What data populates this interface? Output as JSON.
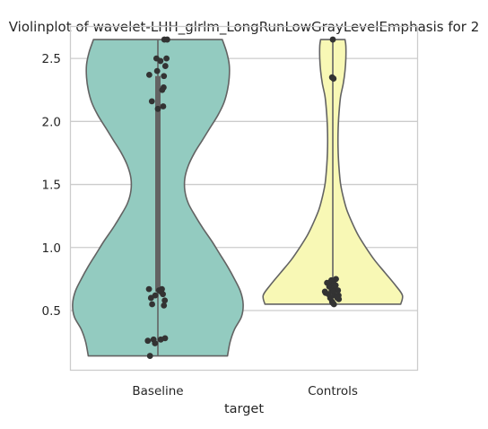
{
  "chart_data": {
    "type": "violin",
    "title": "Violinplot of wavelet-LHH_glrlm_LongRunLowGrayLevelEmphasis for 2",
    "xlabel": "target",
    "ylabel": "",
    "categories": [
      "Baseline",
      "Controls"
    ],
    "yticks": [
      "0.5",
      "1.0",
      "1.5",
      "2.0",
      "2.5"
    ],
    "ylim": [
      0.03,
      2.75
    ],
    "grid": true,
    "colors": {
      "Baseline": "#93cbc0",
      "Controls": "#f8f8b5",
      "outline": "#636363",
      "points": "#333333",
      "grid": "#cccccc"
    },
    "series": [
      {
        "category": "Baseline",
        "min": 0.14,
        "max": 2.65,
        "q1": 0.65,
        "q3": 2.36,
        "profile": [
          [
            0.14,
            0.8
          ],
          [
            0.25,
            0.83
          ],
          [
            0.35,
            0.88
          ],
          [
            0.45,
            0.96
          ],
          [
            0.55,
            0.98
          ],
          [
            0.65,
            0.95
          ],
          [
            0.75,
            0.88
          ],
          [
            0.85,
            0.8
          ],
          [
            0.95,
            0.71
          ],
          [
            1.05,
            0.62
          ],
          [
            1.15,
            0.52
          ],
          [
            1.25,
            0.43
          ],
          [
            1.35,
            0.35
          ],
          [
            1.45,
            0.31
          ],
          [
            1.55,
            0.31
          ],
          [
            1.65,
            0.35
          ],
          [
            1.75,
            0.42
          ],
          [
            1.85,
            0.51
          ],
          [
            1.95,
            0.6
          ],
          [
            2.05,
            0.69
          ],
          [
            2.15,
            0.76
          ],
          [
            2.25,
            0.8
          ],
          [
            2.35,
            0.82
          ],
          [
            2.45,
            0.82
          ],
          [
            2.55,
            0.79
          ],
          [
            2.65,
            0.74
          ]
        ],
        "points": [
          [
            0.45,
            2.65
          ],
          [
            0.65,
            2.65
          ],
          [
            -0.1,
            2.5
          ],
          [
            0.6,
            2.5
          ],
          [
            0.18,
            2.48
          ],
          [
            0.52,
            2.44
          ],
          [
            -0.05,
            2.4
          ],
          [
            -0.6,
            2.37
          ],
          [
            0.42,
            2.36
          ],
          [
            0.4,
            2.27
          ],
          [
            0.3,
            2.25
          ],
          [
            -0.42,
            2.16
          ],
          [
            0.37,
            2.12
          ],
          [
            0.0,
            2.1
          ],
          [
            -0.62,
            0.67
          ],
          [
            0.28,
            0.67
          ],
          [
            0.08,
            0.66
          ],
          [
            0.22,
            0.65
          ],
          [
            0.35,
            0.63
          ],
          [
            -0.18,
            0.62
          ],
          [
            -0.48,
            0.6
          ],
          [
            0.48,
            0.58
          ],
          [
            -0.4,
            0.55
          ],
          [
            0.42,
            0.54
          ],
          [
            -0.7,
            0.26
          ],
          [
            -0.3,
            0.27
          ],
          [
            -0.2,
            0.24
          ],
          [
            0.5,
            0.28
          ],
          [
            0.2,
            0.27
          ],
          [
            -0.55,
            0.14
          ]
        ]
      },
      {
        "category": "Controls",
        "min": 0.55,
        "max": 2.65,
        "q1": 0.61,
        "q3": 0.74,
        "profile": [
          [
            0.55,
            0.78
          ],
          [
            0.62,
            0.8
          ],
          [
            0.7,
            0.72
          ],
          [
            0.8,
            0.6
          ],
          [
            0.9,
            0.48
          ],
          [
            1.0,
            0.38
          ],
          [
            1.1,
            0.29
          ],
          [
            1.2,
            0.22
          ],
          [
            1.3,
            0.16
          ],
          [
            1.4,
            0.12
          ],
          [
            1.5,
            0.09
          ],
          [
            1.6,
            0.075
          ],
          [
            1.7,
            0.065
          ],
          [
            1.8,
            0.06
          ],
          [
            1.9,
            0.06
          ],
          [
            2.0,
            0.065
          ],
          [
            2.1,
            0.075
          ],
          [
            2.2,
            0.09
          ],
          [
            2.3,
            0.12
          ],
          [
            2.4,
            0.14
          ],
          [
            2.5,
            0.15
          ],
          [
            2.6,
            0.15
          ],
          [
            2.65,
            0.14
          ]
        ],
        "points": [
          [
            0.0,
            2.65
          ],
          [
            -0.05,
            2.35
          ],
          [
            0.05,
            2.34
          ],
          [
            0.22,
            0.75
          ],
          [
            -0.1,
            0.74
          ],
          [
            -0.12,
            0.71
          ],
          [
            0.08,
            0.71
          ],
          [
            -0.4,
            0.72
          ],
          [
            0.2,
            0.7
          ],
          [
            -0.25,
            0.69
          ],
          [
            0.1,
            0.68
          ],
          [
            0.36,
            0.66
          ],
          [
            -0.08,
            0.66
          ],
          [
            -0.55,
            0.65
          ],
          [
            0.05,
            0.65
          ],
          [
            -0.5,
            0.64
          ],
          [
            -0.3,
            0.63
          ],
          [
            0.12,
            0.62
          ],
          [
            0.4,
            0.62
          ],
          [
            0.28,
            0.61
          ],
          [
            -0.18,
            0.6
          ],
          [
            0.42,
            0.59
          ],
          [
            0.32,
            0.6
          ],
          [
            -0.05,
            0.57
          ],
          [
            0.0,
            0.56
          ],
          [
            0.08,
            0.55
          ]
        ]
      }
    ]
  }
}
